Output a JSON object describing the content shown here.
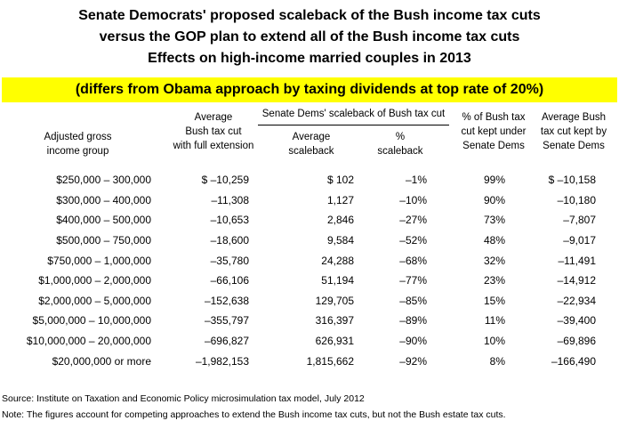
{
  "title": {
    "line1": "Senate Democrats' proposed scaleback of the Bush income tax cuts",
    "line2": "versus the GOP plan to extend all of the Bush income tax cuts",
    "line3": "Effects on high-income married couples in 2013",
    "highlight": "(differs from Obama approach by taxing dividends at top rate of 20%)"
  },
  "headers": {
    "group": [
      "Adjusted gross",
      "income group"
    ],
    "bush": [
      "Average",
      "Bush tax cut",
      "with full extension"
    ],
    "senate_group": "Senate Dems' scaleback of Bush tax cut",
    "avg_scaleback": [
      "Average",
      "scaleback"
    ],
    "pct_scaleback": [
      "%",
      "scaleback"
    ],
    "pct_kept": [
      "% of Bush tax",
      "cut kept under",
      "Senate Dems"
    ],
    "avg_kept": [
      "Average Bush",
      "tax cut kept by",
      "Senate Dems"
    ]
  },
  "rows": [
    {
      "group": "$250,000 – 300,000",
      "bush": "$ –10,259",
      "avg_scaleback": "$ 102",
      "pct_scaleback": "–1%",
      "pct_kept": "99%",
      "avg_kept": "$ –10,158"
    },
    {
      "group": "$300,000 – 400,000",
      "bush": "–11,308",
      "avg_scaleback": "1,127",
      "pct_scaleback": "–10%",
      "pct_kept": "90%",
      "avg_kept": "–10,180"
    },
    {
      "group": "$400,000 – 500,000",
      "bush": "–10,653",
      "avg_scaleback": "2,846",
      "pct_scaleback": "–27%",
      "pct_kept": "73%",
      "avg_kept": "–7,807"
    },
    {
      "group": "$500,000 – 750,000",
      "bush": "–18,600",
      "avg_scaleback": "9,584",
      "pct_scaleback": "–52%",
      "pct_kept": "48%",
      "avg_kept": "–9,017"
    },
    {
      "group": "$750,000 – 1,000,000",
      "bush": "–35,780",
      "avg_scaleback": "24,288",
      "pct_scaleback": "–68%",
      "pct_kept": "32%",
      "avg_kept": "–11,491"
    },
    {
      "group": "$1,000,000 – 2,000,000",
      "bush": "–66,106",
      "avg_scaleback": "51,194",
      "pct_scaleback": "–77%",
      "pct_kept": "23%",
      "avg_kept": "–14,912"
    },
    {
      "group": "$2,000,000 – 5,000,000",
      "bush": "–152,638",
      "avg_scaleback": "129,705",
      "pct_scaleback": "–85%",
      "pct_kept": "15%",
      "avg_kept": "–22,934"
    },
    {
      "group": "$5,000,000 – 10,000,000",
      "bush": "–355,797",
      "avg_scaleback": "316,397",
      "pct_scaleback": "–89%",
      "pct_kept": "11%",
      "avg_kept": "–39,400"
    },
    {
      "group": "$10,000,000 – 20,000,000",
      "bush": "–696,827",
      "avg_scaleback": "626,931",
      "pct_scaleback": "–90%",
      "pct_kept": "10%",
      "avg_kept": "–69,896"
    },
    {
      "group": "$20,000,000 or more",
      "bush": "–1,982,153",
      "avg_scaleback": "1,815,662",
      "pct_scaleback": "–92%",
      "pct_kept": "8%",
      "avg_kept": "–166,490"
    }
  ],
  "footer": {
    "source": "Source: Institute on Taxation and Economic Policy microsimulation tax model, July 2012",
    "note": "Note: The figures account for competing approaches to extend the Bush income tax cuts, but not the Bush estate tax cuts."
  },
  "colors": {
    "highlight": "#ffff00",
    "text": "#000000",
    "background": "#ffffff"
  }
}
